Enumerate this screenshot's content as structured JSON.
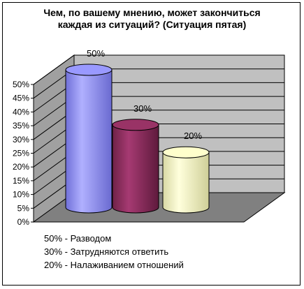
{
  "chart_data": {
    "type": "bar",
    "title_lines": [
      "Чем, по вашему мнению, может закончиться",
      "каждая из ситуаций? (Ситуация пятая)"
    ],
    "categories": [
      "Разводом",
      "Затрудняются ответить",
      "Налаживанием отношений"
    ],
    "values": [
      50,
      30,
      20
    ],
    "data_labels": [
      "50%",
      "30%",
      "20%"
    ],
    "y_ticks": [
      "0%",
      "5%",
      "10%",
      "15%",
      "20%",
      "25%",
      "30%",
      "35%",
      "40%",
      "45%",
      "50%"
    ],
    "ylim": [
      0,
      50
    ],
    "grid": true,
    "bar_shape": "cylinder-3d",
    "colors": [
      "#9999ff",
      "#993366",
      "#ffffcc"
    ],
    "legend": {
      "placement": "bottom-left",
      "entries": [
        "50% - Разводом",
        "30% - Затрудняются ответить",
        "20% - Налаживанием отношений"
      ]
    }
  }
}
